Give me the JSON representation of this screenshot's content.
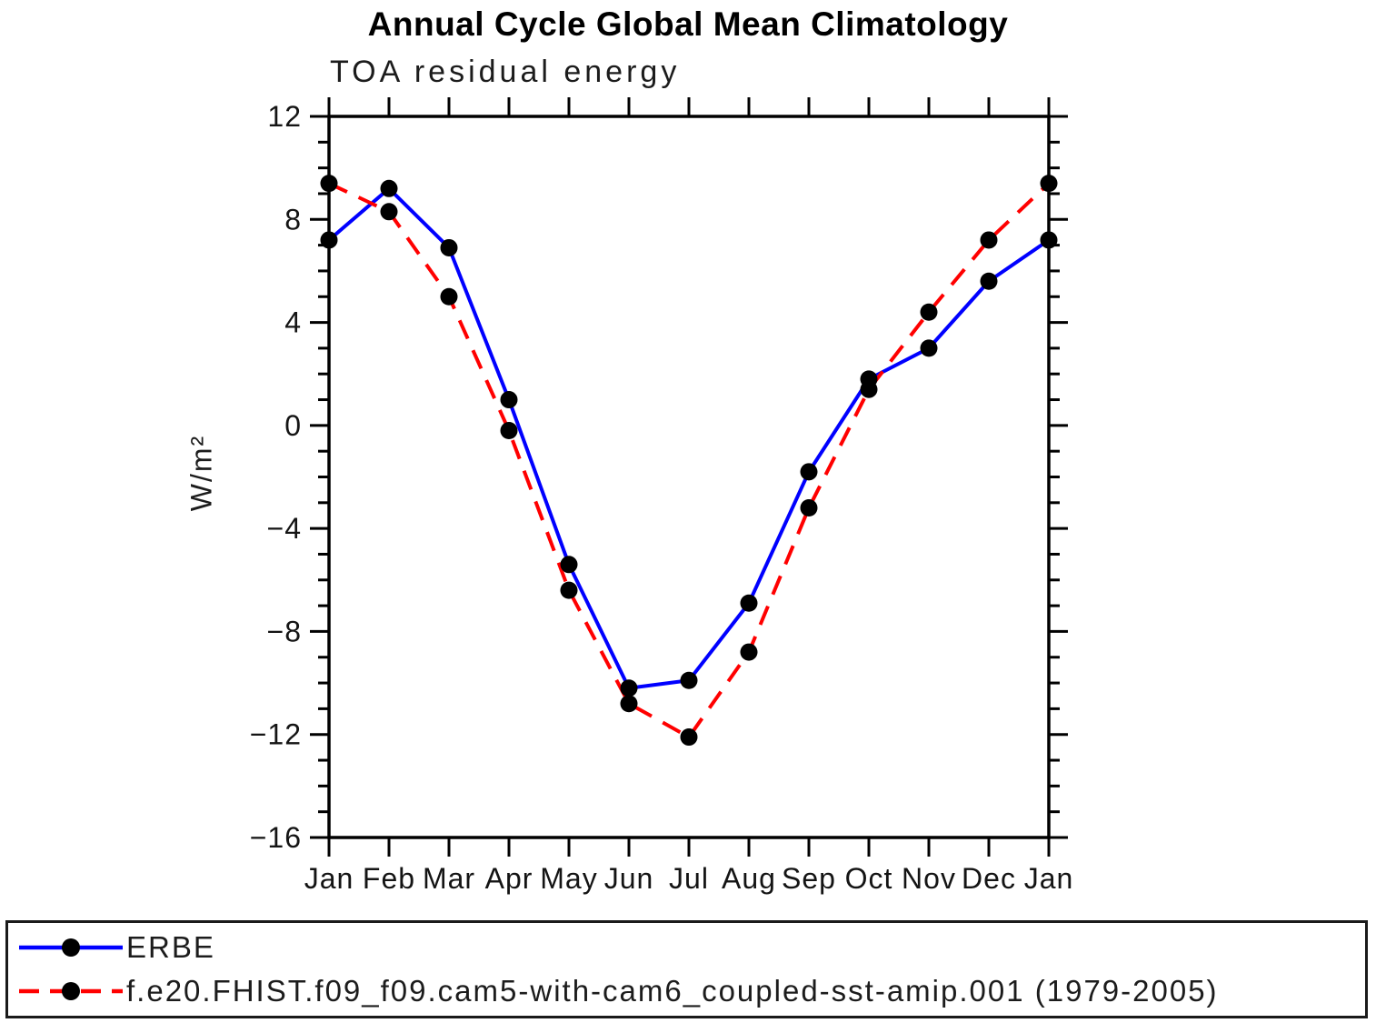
{
  "title": "Annual Cycle Global Mean Climatology",
  "chart_data": {
    "type": "line",
    "title": "Annual Cycle Global Mean Climatology",
    "subtitle": "TOA residual energy",
    "xlabel": "",
    "ylabel": "W/m²",
    "categories": [
      "Jan",
      "Feb",
      "Mar",
      "Apr",
      "May",
      "Jun",
      "Jul",
      "Aug",
      "Sep",
      "Oct",
      "Nov",
      "Dec",
      "Jan"
    ],
    "ylim": [
      -16,
      12
    ],
    "ytick_major_step": 4,
    "ytick_minor_step": 1,
    "ytick_labels": [
      "12",
      "8",
      "4",
      "0",
      "−4",
      "−8",
      "−12",
      "−16"
    ],
    "grid": false,
    "legend_position": "bottom-box",
    "marker_color": "#000000",
    "axis_color": "#000000",
    "series": [
      {
        "name": "ERBE",
        "color": "#0000ff",
        "style": "solid",
        "marker": "circle",
        "values": [
          7.2,
          9.2,
          6.9,
          1.0,
          -5.4,
          -10.2,
          -9.9,
          -6.9,
          -1.8,
          1.8,
          3.0,
          5.6,
          7.2
        ]
      },
      {
        "name": "f.e20.FHIST.f09_f09.cam5-with-cam6_coupled-sst-amip.001 (1979-2005)",
        "color": "#ff0000",
        "style": "dashed",
        "marker": "circle",
        "values": [
          9.4,
          8.3,
          5.0,
          -0.2,
          -6.4,
          -10.8,
          -12.1,
          -8.8,
          -3.2,
          1.4,
          4.4,
          7.2,
          9.4
        ]
      }
    ]
  }
}
